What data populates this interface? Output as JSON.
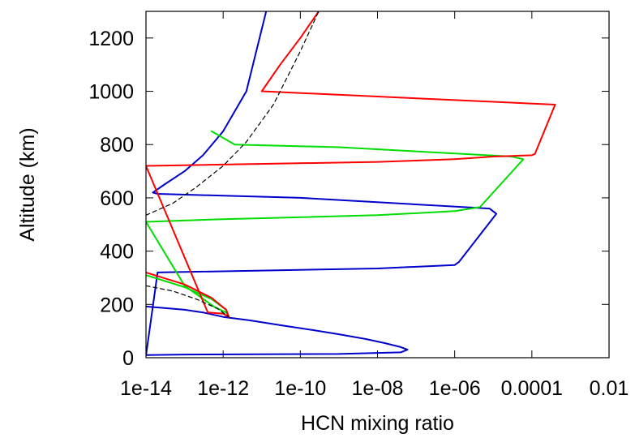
{
  "chart_data": {
    "type": "line",
    "title": "",
    "xlabel": "HCN mixing ratio",
    "ylabel": "Altitude (km)",
    "x_scale": "log",
    "xlim": [
      1e-14,
      0.01
    ],
    "ylim": [
      0,
      1300
    ],
    "x_ticks": [
      1e-14,
      1e-12,
      1e-10,
      1e-08,
      1e-06,
      0.0001,
      0.01
    ],
    "x_tick_labels": [
      "1e-14",
      "1e-12",
      "1e-10",
      "1e-08",
      "1e-06",
      "0.0001",
      "0.01"
    ],
    "y_ticks": [
      0,
      200,
      400,
      600,
      800,
      1000,
      1200
    ],
    "y_tick_labels": [
      "0",
      "200",
      "400",
      "600",
      "800",
      "1000",
      "1200"
    ],
    "grid": false,
    "legend": "none",
    "series": [
      {
        "color": "#0000cc",
        "dash": "solid",
        "x": [
          1e-14,
          4e-14,
          1e-13,
          3e-13,
          1e-12,
          5e-12,
          3e-11,
          2e-10,
          1e-09,
          5e-09,
          1.5e-08,
          4e-08,
          6e-08,
          4e-08,
          1e-09,
          1e-13,
          1e-14,
          1e-14,
          2e-14,
          1e-08,
          1e-06,
          1.3e-06,
          1.2e-05,
          8e-06,
          1e-10,
          2e-14,
          1.5e-14,
          3e-14,
          1e-13,
          3e-13,
          1e-12,
          4e-12,
          1.3e-11
        ],
        "y": [
          192,
          185,
          180,
          170,
          153,
          140,
          122,
          104,
          88,
          70,
          55,
          40,
          30,
          20,
          14,
          12,
          10,
          8,
          320,
          335,
          348,
          360,
          540,
          560,
          600,
          615,
          620,
          650,
          700,
          760,
          850,
          1000,
          1300
        ]
      },
      {
        "color": "#00dd00",
        "dash": "solid",
        "x": [
          1e-14,
          1e-13,
          5e-13,
          1.2e-12,
          1.4e-12,
          1.2e-12,
          1e-12,
          6e-13,
          1e-13,
          1e-14,
          1e-12,
          1e-08,
          1e-06,
          4.5e-06,
          6e-05,
          3e-05,
          1e-09,
          2e-12,
          5e-13
        ],
        "y": [
          310,
          265,
          220,
          180,
          153,
          170,
          175,
          190,
          270,
          510,
          520,
          535,
          550,
          565,
          745,
          755,
          790,
          800,
          850
        ]
      },
      {
        "color": "#ff0000",
        "dash": "solid",
        "x": [
          1e-14,
          1e-13,
          5e-13,
          1.2e-12,
          1.4e-12,
          1e-12,
          4e-13,
          1e-14,
          1e-12,
          1e-08,
          1e-06,
          1e-05,
          0.0001,
          0.00012,
          0.0004,
          1e-11,
          3e-11,
          1e-10,
          3e-10
        ],
        "y": [
          320,
          275,
          225,
          180,
          153,
          165,
          170,
          720,
          725,
          735,
          745,
          755,
          760,
          765,
          950,
          1000,
          1100,
          1200,
          1300
        ]
      },
      {
        "color": "#000000",
        "dash": "dashed",
        "x": [
          1e-14,
          5e-14,
          2e-13,
          7e-13,
          1.4e-12
        ],
        "y": [
          270,
          250,
          220,
          185,
          153
        ]
      },
      {
        "color": "#000000",
        "dash": "dashed",
        "x": [
          1e-14,
          5e-14,
          2e-13,
          1e-12,
          4e-12,
          2e-11,
          1e-10,
          3e-10
        ],
        "y": [
          535,
          580,
          640,
          720,
          810,
          950,
          1150,
          1300
        ]
      }
    ]
  }
}
